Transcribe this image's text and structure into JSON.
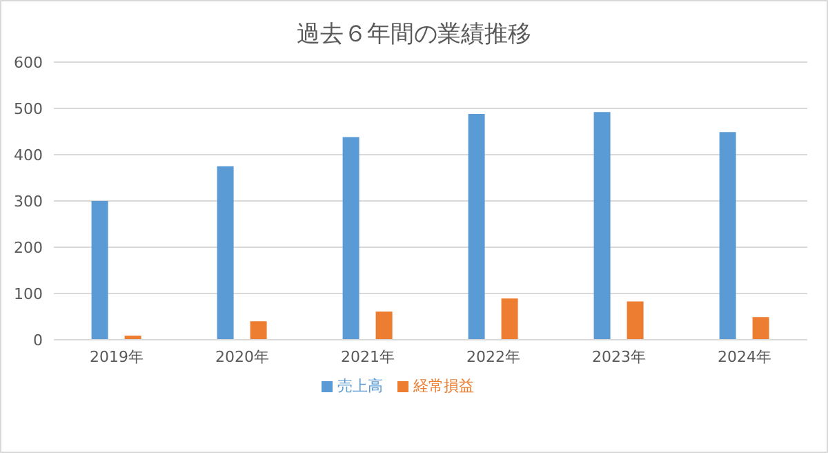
{
  "chart_data": {
    "type": "bar",
    "title": "過去６年間の業績推移",
    "categories": [
      "2019年",
      "2020年",
      "2021年",
      "2022年",
      "2023年",
      "2024年"
    ],
    "series": [
      {
        "name": "売上高",
        "color": "#5b9bd5",
        "values": [
          300,
          375,
          438,
          488,
          492,
          449
        ]
      },
      {
        "name": "経常損益",
        "color": "#ed7d31",
        "values": [
          9,
          40,
          61,
          89,
          83,
          49
        ]
      }
    ],
    "ylim": [
      0,
      600
    ],
    "yticks": [
      0,
      100,
      200,
      300,
      400,
      500,
      600
    ],
    "grid": "y",
    "legend": "bottom"
  }
}
